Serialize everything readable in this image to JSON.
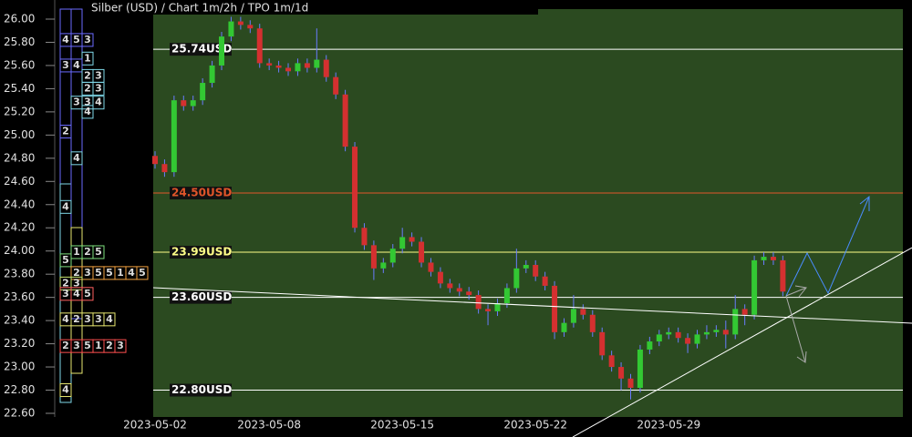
{
  "chart_data": {
    "type": "candlestick",
    "title": "Silber (USD) /  Chart 1m/2h / TPO 1m/1d",
    "categories": [
      "2023-05-02",
      null,
      null,
      null,
      null,
      null,
      null,
      null,
      null,
      null,
      null,
      null,
      "2023-05-08",
      null,
      null,
      null,
      null,
      null,
      null,
      null,
      null,
      null,
      null,
      null,
      null,
      null,
      "2023-05-15",
      null,
      null,
      null,
      null,
      null,
      null,
      null,
      null,
      null,
      null,
      null,
      null,
      null,
      "2023-05-22",
      null,
      null,
      null,
      null,
      null,
      null,
      null,
      null,
      null,
      null,
      null,
      null,
      null,
      "2023-05-29",
      null,
      null,
      null,
      null,
      null,
      null,
      null,
      null,
      null,
      null,
      null,
      null
    ],
    "open": [
      24.82,
      24.75,
      24.68,
      25.3,
      25.25,
      25.3,
      25.45,
      25.6,
      25.85,
      25.98,
      25.95,
      25.92,
      25.62,
      25.6,
      25.58,
      25.55,
      25.62,
      25.58,
      25.65,
      25.5,
      25.35,
      24.9,
      24.2,
      24.05,
      23.85,
      23.9,
      24.02,
      24.12,
      24.08,
      23.9,
      23.82,
      23.72,
      23.68,
      23.65,
      23.62,
      23.5,
      23.48,
      23.55,
      23.68,
      23.85,
      23.88,
      23.78,
      23.7,
      23.3,
      23.38,
      23.5,
      23.45,
      23.3,
      23.1,
      23.0,
      22.9,
      22.82,
      23.15,
      23.22,
      23.28,
      23.3,
      23.25,
      23.2,
      23.28,
      23.3,
      23.32,
      23.28,
      23.5,
      23.45,
      23.92,
      23.95,
      23.92
    ],
    "high": [
      24.86,
      24.79,
      25.34,
      25.34,
      25.34,
      25.49,
      25.64,
      25.89,
      26.02,
      26.02,
      25.99,
      25.96,
      25.66,
      25.64,
      25.62,
      25.66,
      25.66,
      25.92,
      25.69,
      25.54,
      25.39,
      24.94,
      24.24,
      24.09,
      23.94,
      24.06,
      24.2,
      24.16,
      24.12,
      23.94,
      23.86,
      23.76,
      23.72,
      23.69,
      23.66,
      23.54,
      23.59,
      23.72,
      24.02,
      23.92,
      23.92,
      23.82,
      23.74,
      23.42,
      23.62,
      23.54,
      23.49,
      23.34,
      23.14,
      23.04,
      22.94,
      23.19,
      23.26,
      23.32,
      23.34,
      23.34,
      23.29,
      23.32,
      23.36,
      23.36,
      23.4,
      23.62,
      23.54,
      23.96,
      23.99,
      23.99,
      23.96
    ],
    "low": [
      24.71,
      24.64,
      24.64,
      25.21,
      25.21,
      25.26,
      25.41,
      25.56,
      25.81,
      25.91,
      25.88,
      25.58,
      25.56,
      25.54,
      25.51,
      25.51,
      25.54,
      25.54,
      25.46,
      25.31,
      24.86,
      24.16,
      24.01,
      23.75,
      23.81,
      23.86,
      23.98,
      24.04,
      23.86,
      23.78,
      23.68,
      23.64,
      23.61,
      23.58,
      23.46,
      23.36,
      23.44,
      23.51,
      23.64,
      23.81,
      23.74,
      23.66,
      23.24,
      23.26,
      23.34,
      23.41,
      23.26,
      23.06,
      22.96,
      22.8,
      22.72,
      22.78,
      23.11,
      23.18,
      23.24,
      23.21,
      23.12,
      23.16,
      23.24,
      23.26,
      23.16,
      23.24,
      23.36,
      23.41,
      23.88,
      23.88,
      23.61
    ],
    "close": [
      24.75,
      24.68,
      25.3,
      25.25,
      25.3,
      25.45,
      25.6,
      25.85,
      25.98,
      25.95,
      25.92,
      25.62,
      25.6,
      25.58,
      25.55,
      25.62,
      25.58,
      25.65,
      25.5,
      25.35,
      24.9,
      24.2,
      24.05,
      23.85,
      23.9,
      24.02,
      24.12,
      24.08,
      23.9,
      23.82,
      23.72,
      23.68,
      23.65,
      23.62,
      23.5,
      23.48,
      23.55,
      23.68,
      23.85,
      23.88,
      23.78,
      23.7,
      23.3,
      23.38,
      23.5,
      23.45,
      23.3,
      23.1,
      23.0,
      22.9,
      22.82,
      23.15,
      23.22,
      23.28,
      23.3,
      23.25,
      23.2,
      23.28,
      23.3,
      23.32,
      23.28,
      23.5,
      23.45,
      23.92,
      23.95,
      23.92,
      23.65
    ],
    "up_color": "#33c833",
    "down_color": "#d43030",
    "wick_color": "#6a7cff",
    "ylim": [
      22.6,
      26.0
    ],
    "yticks": [
      {
        "value": 22.6,
        "label": "22.60"
      },
      {
        "value": 22.8,
        "label": "22.80"
      },
      {
        "value": 23.0,
        "label": "23.00"
      },
      {
        "value": 23.2,
        "label": "23.20"
      },
      {
        "value": 23.4,
        "label": "23.40"
      },
      {
        "value": 23.6,
        "label": "23.60"
      },
      {
        "value": 23.8,
        "label": "23.80"
      },
      {
        "value": 24.0,
        "label": "24.00"
      },
      {
        "value": 24.2,
        "label": "24.20"
      },
      {
        "value": 24.4,
        "label": "24.40"
      },
      {
        "value": 24.6,
        "label": "24.60"
      },
      {
        "value": 24.8,
        "label": "24.80"
      },
      {
        "value": 25.0,
        "label": "25.00"
      },
      {
        "value": 25.2,
        "label": "25.20"
      },
      {
        "value": 25.4,
        "label": "25.40"
      },
      {
        "value": 25.6,
        "label": "25.60"
      },
      {
        "value": 25.8,
        "label": "25.80"
      },
      {
        "value": 26.0,
        "label": "26.00"
      }
    ],
    "levels": [
      {
        "value": 25.74,
        "label": "25.74USD",
        "color": "#ffffff"
      },
      {
        "value": 24.5,
        "label": "24.50USD",
        "color": "#e0552a"
      },
      {
        "value": 23.99,
        "label": "23.99USD",
        "color": "#ffff88"
      },
      {
        "value": 23.6,
        "label": "23.60USD",
        "color": "#ffffff"
      },
      {
        "value": 22.8,
        "label": "22.80USD",
        "color": "#ffffff"
      }
    ],
    "tpo": [
      {
        "price": 25.82,
        "digits": [
          "4",
          "5",
          "3"
        ],
        "color": "#6a6aff"
      },
      {
        "price": 25.66,
        "digits": [
          null,
          null,
          "1"
        ],
        "color": "#7fd8e8"
      },
      {
        "price": 25.6,
        "digits": [
          "3",
          "4"
        ],
        "color": "#6a6aff"
      },
      {
        "price": 25.51,
        "digits": [
          null,
          null,
          "2",
          "3"
        ],
        "color": "#7fd8e8"
      },
      {
        "price": 25.4,
        "digits": [
          null,
          null,
          "2",
          "3"
        ],
        "color": "#7fd8e8"
      },
      {
        "price": 25.28,
        "digits": [
          null,
          "3",
          "3",
          "4"
        ],
        "color": "#7fd8e8"
      },
      {
        "price": 25.2,
        "digits": [
          null,
          null,
          "4"
        ],
        "color": "#7fd8e8"
      },
      {
        "price": 25.03,
        "digits": [
          "2"
        ],
        "color": "#6a6aff"
      },
      {
        "price": 24.8,
        "digits": [
          null,
          "4"
        ],
        "color": "#7fd8e8"
      },
      {
        "price": 24.38,
        "digits": [
          "4"
        ],
        "color": "#7fd8e8"
      },
      {
        "price": 23.99,
        "digits": [
          null,
          "1",
          "2",
          "5"
        ],
        "color": "#7ee07e"
      },
      {
        "price": 23.92,
        "digits": [
          "5"
        ],
        "color": "#7ee07e"
      },
      {
        "price": 23.81,
        "digits": [
          null,
          "2",
          "3",
          "5",
          "5",
          "1",
          "4",
          "5"
        ],
        "color": "#f0a040"
      },
      {
        "price": 23.72,
        "digits": [
          "2",
          "3"
        ],
        "color": "#c8e870"
      },
      {
        "price": 23.63,
        "digits": [
          "3",
          "4",
          "5"
        ],
        "color": "#ff6060"
      },
      {
        "price": 23.41,
        "digits": [
          "4",
          "2",
          "3",
          "3",
          "4"
        ],
        "color": "#e8e870"
      },
      {
        "price": 23.18,
        "digits": [
          "2",
          "3",
          "5",
          "1",
          "2",
          "3"
        ],
        "color": "#ff5050"
      },
      {
        "price": 22.8,
        "digits": [
          "4"
        ],
        "color": "#e8e870"
      }
    ]
  }
}
